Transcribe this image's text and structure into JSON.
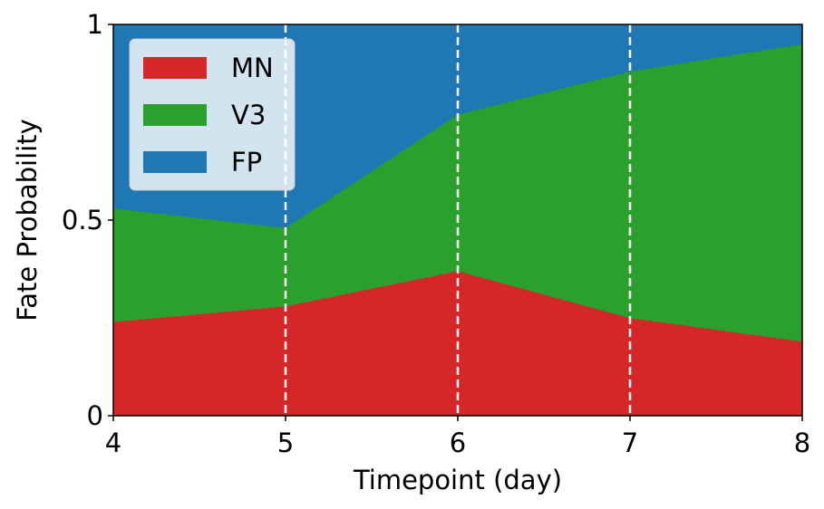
{
  "chart_data": {
    "type": "area",
    "stacked": true,
    "title": "",
    "xlabel": "Timepoint (day)",
    "ylabel": "Fate Probability",
    "x": [
      4,
      5,
      6,
      7,
      8
    ],
    "xlim": [
      4,
      8
    ],
    "ylim": [
      0,
      1
    ],
    "xticks": [
      4,
      5,
      6,
      7,
      8
    ],
    "xtick_labels": [
      "4",
      "5",
      "6",
      "7",
      "8"
    ],
    "yticks": [
      0,
      0.5,
      1
    ],
    "ytick_labels": [
      "0",
      "0.5",
      "1"
    ],
    "vlines": [
      5,
      6,
      7
    ],
    "vline_style": "dashed",
    "vline_color": "#ffffff",
    "grid": false,
    "legend": {
      "position": "upper-left"
    },
    "series": [
      {
        "name": "MN",
        "color": "#d62728",
        "values": [
          0.24,
          0.28,
          0.37,
          0.25,
          0.19
        ]
      },
      {
        "name": "V3",
        "color": "#2ca02c",
        "values": [
          0.29,
          0.2,
          0.4,
          0.63,
          0.76
        ]
      },
      {
        "name": "FP",
        "color": "#1f77b4",
        "values": [
          0.47,
          0.52,
          0.23,
          0.12,
          0.05
        ]
      }
    ]
  }
}
